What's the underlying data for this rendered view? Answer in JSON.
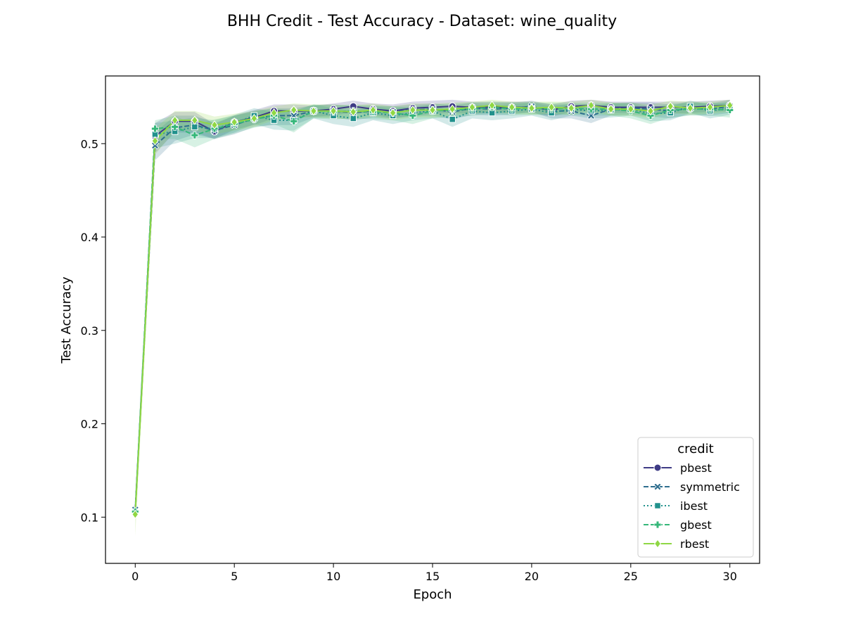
{
  "chart_data": {
    "type": "line",
    "title": "BHH Credit - Test Accuracy - Dataset: wine_quality",
    "xlabel": "Epoch",
    "ylabel": "Test Accuracy",
    "xlim": [
      -1.5,
      31.5
    ],
    "ylim": [
      0.0505,
      0.5725
    ],
    "xticks": [
      0,
      5,
      10,
      15,
      20,
      25,
      30
    ],
    "yticks": [
      0.1,
      0.2,
      0.3,
      0.4,
      0.5
    ],
    "xtick_labels": [
      "0",
      "5",
      "10",
      "15",
      "20",
      "25",
      "30"
    ],
    "ytick_labels": [
      "0.1",
      "0.2",
      "0.3",
      "0.4",
      "0.5"
    ],
    "grid": false,
    "legend": {
      "title": "credit",
      "placement": "lower-right"
    },
    "x": [
      0,
      1,
      2,
      3,
      4,
      5,
      6,
      7,
      8,
      9,
      10,
      11,
      12,
      13,
      14,
      15,
      16,
      17,
      18,
      19,
      20,
      21,
      22,
      23,
      24,
      25,
      26,
      27,
      28,
      29,
      30
    ],
    "series": [
      {
        "name": "pbest",
        "color": "#3e3b85",
        "dash": "solid",
        "marker": "circle",
        "values": [
          0.105,
          0.508,
          0.524,
          0.524,
          0.513,
          0.523,
          0.528,
          0.535,
          0.535,
          0.535,
          0.537,
          0.54,
          0.537,
          0.535,
          0.538,
          0.539,
          0.54,
          0.539,
          0.539,
          0.539,
          0.539,
          0.536,
          0.54,
          0.541,
          0.539,
          0.539,
          0.539,
          0.539,
          0.539,
          0.54,
          0.541
        ],
        "lower": [
          0.1,
          0.49,
          0.512,
          0.512,
          0.505,
          0.515,
          0.52,
          0.527,
          0.528,
          0.529,
          0.53,
          0.534,
          0.531,
          0.527,
          0.53,
          0.532,
          0.533,
          0.532,
          0.533,
          0.533,
          0.533,
          0.529,
          0.534,
          0.535,
          0.533,
          0.533,
          0.532,
          0.532,
          0.533,
          0.534,
          0.535
        ],
        "upper": [
          0.11,
          0.522,
          0.534,
          0.534,
          0.521,
          0.53,
          0.536,
          0.542,
          0.542,
          0.541,
          0.543,
          0.546,
          0.543,
          0.542,
          0.545,
          0.546,
          0.547,
          0.545,
          0.545,
          0.545,
          0.545,
          0.542,
          0.546,
          0.547,
          0.545,
          0.545,
          0.545,
          0.545,
          0.545,
          0.546,
          0.547
        ]
      },
      {
        "name": "symmetric",
        "color": "#2e6e8e",
        "dash": "dashed",
        "marker": "x",
        "values": [
          0.108,
          0.498,
          0.517,
          0.52,
          0.514,
          0.52,
          0.527,
          0.53,
          0.53,
          0.535,
          0.535,
          0.533,
          0.535,
          0.534,
          0.536,
          0.537,
          0.534,
          0.538,
          0.537,
          0.538,
          0.54,
          0.535,
          0.535,
          0.53,
          0.537,
          0.538,
          0.537,
          0.535,
          0.538,
          0.537,
          0.54
        ],
        "lower": [
          0.1,
          0.482,
          0.503,
          0.51,
          0.505,
          0.51,
          0.518,
          0.52,
          0.52,
          0.528,
          0.528,
          0.525,
          0.528,
          0.527,
          0.529,
          0.53,
          0.526,
          0.531,
          0.53,
          0.531,
          0.534,
          0.527,
          0.527,
          0.522,
          0.53,
          0.531,
          0.529,
          0.527,
          0.531,
          0.53,
          0.533
        ],
        "upper": [
          0.116,
          0.512,
          0.53,
          0.53,
          0.522,
          0.53,
          0.535,
          0.538,
          0.538,
          0.541,
          0.542,
          0.54,
          0.541,
          0.54,
          0.542,
          0.543,
          0.541,
          0.544,
          0.543,
          0.544,
          0.546,
          0.542,
          0.542,
          0.538,
          0.543,
          0.544,
          0.544,
          0.542,
          0.544,
          0.543,
          0.547
        ]
      },
      {
        "name": "ibest",
        "color": "#21918c",
        "dash": "dotted",
        "marker": "square",
        "values": [
          0.105,
          0.51,
          0.513,
          0.518,
          0.516,
          0.522,
          0.53,
          0.525,
          0.525,
          0.535,
          0.53,
          0.527,
          0.533,
          0.53,
          0.533,
          0.535,
          0.526,
          0.535,
          0.533,
          0.535,
          0.537,
          0.533,
          0.537,
          0.535,
          0.536,
          0.537,
          0.532,
          0.533,
          0.54,
          0.535,
          0.538
        ],
        "lower": [
          0.098,
          0.495,
          0.5,
          0.506,
          0.506,
          0.512,
          0.521,
          0.515,
          0.514,
          0.527,
          0.521,
          0.518,
          0.525,
          0.521,
          0.525,
          0.527,
          0.518,
          0.527,
          0.525,
          0.527,
          0.53,
          0.525,
          0.53,
          0.527,
          0.528,
          0.53,
          0.524,
          0.525,
          0.533,
          0.527,
          0.531
        ],
        "upper": [
          0.112,
          0.522,
          0.525,
          0.528,
          0.525,
          0.531,
          0.538,
          0.534,
          0.535,
          0.542,
          0.538,
          0.535,
          0.54,
          0.538,
          0.54,
          0.542,
          0.534,
          0.542,
          0.54,
          0.542,
          0.544,
          0.54,
          0.543,
          0.542,
          0.543,
          0.544,
          0.54,
          0.54,
          0.546,
          0.542,
          0.545
        ]
      },
      {
        "name": "gbest",
        "color": "#35b779",
        "dash": "dashed",
        "marker": "plus",
        "values": [
          0.106,
          0.516,
          0.518,
          0.509,
          0.516,
          0.521,
          0.526,
          0.53,
          0.524,
          0.535,
          0.534,
          0.535,
          0.534,
          0.533,
          0.53,
          0.535,
          0.536,
          0.537,
          0.539,
          0.537,
          0.538,
          0.537,
          0.538,
          0.537,
          0.537,
          0.535,
          0.53,
          0.536,
          0.537,
          0.537,
          0.536
        ],
        "lower": [
          0.096,
          0.505,
          0.505,
          0.496,
          0.505,
          0.511,
          0.517,
          0.521,
          0.512,
          0.527,
          0.526,
          0.527,
          0.526,
          0.525,
          0.521,
          0.527,
          0.528,
          0.53,
          0.532,
          0.53,
          0.531,
          0.53,
          0.531,
          0.53,
          0.53,
          0.527,
          0.521,
          0.528,
          0.53,
          0.53,
          0.528
        ],
        "upper": [
          0.116,
          0.525,
          0.53,
          0.52,
          0.526,
          0.53,
          0.534,
          0.538,
          0.535,
          0.542,
          0.541,
          0.542,
          0.541,
          0.54,
          0.538,
          0.542,
          0.543,
          0.544,
          0.545,
          0.544,
          0.544,
          0.544,
          0.544,
          0.544,
          0.544,
          0.542,
          0.538,
          0.543,
          0.544,
          0.544,
          0.543
        ]
      },
      {
        "name": "rbest",
        "color": "#8fd744",
        "dash": "solid",
        "marker": "diamond",
        "values": [
          0.103,
          0.503,
          0.525,
          0.525,
          0.52,
          0.523,
          0.527,
          0.533,
          0.536,
          0.535,
          0.535,
          0.534,
          0.536,
          0.533,
          0.536,
          0.536,
          0.537,
          0.539,
          0.541,
          0.539,
          0.538,
          0.539,
          0.538,
          0.541,
          0.537,
          0.537,
          0.535,
          0.54,
          0.538,
          0.539,
          0.541
        ],
        "lower": [
          0.08,
          0.488,
          0.514,
          0.514,
          0.51,
          0.514,
          0.518,
          0.525,
          0.528,
          0.528,
          0.527,
          0.526,
          0.529,
          0.525,
          0.528,
          0.528,
          0.53,
          0.532,
          0.534,
          0.532,
          0.531,
          0.532,
          0.531,
          0.534,
          0.53,
          0.53,
          0.527,
          0.533,
          0.531,
          0.532,
          0.534
        ],
        "upper": [
          0.126,
          0.516,
          0.535,
          0.535,
          0.529,
          0.532,
          0.535,
          0.54,
          0.543,
          0.542,
          0.542,
          0.541,
          0.543,
          0.54,
          0.543,
          0.543,
          0.544,
          0.545,
          0.547,
          0.545,
          0.545,
          0.545,
          0.545,
          0.547,
          0.544,
          0.544,
          0.542,
          0.546,
          0.545,
          0.545,
          0.547
        ]
      }
    ]
  }
}
